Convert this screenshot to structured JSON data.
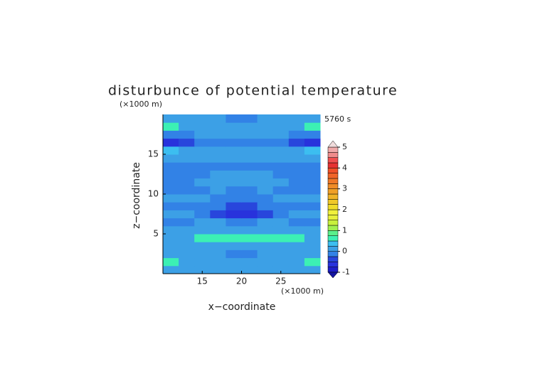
{
  "chart_data": {
    "type": "contour",
    "title": "disturbunce of potential temperature",
    "subtitle": "5760 s",
    "x_label": "x−coordinate",
    "y_label": "z−coordinate",
    "x_unit": "(×1000 m)",
    "y_unit": "(×1000 m)",
    "x": [
      11,
      13,
      15,
      17,
      19,
      21,
      23,
      25,
      27,
      29
    ],
    "y": [
      0.5,
      1.5,
      2.5,
      3.5,
      4.5,
      5.5,
      6.5,
      7.5,
      8.5,
      9.5,
      10.5,
      11.5,
      12.5,
      13.5,
      14.5,
      15.5,
      16.5,
      17.5,
      18.5,
      19.5
    ],
    "z": [
      [
        0,
        0,
        0,
        0,
        0,
        0,
        0,
        0,
        0,
        0
      ],
      [
        0.6,
        0.1,
        0.1,
        0.1,
        0.1,
        0.1,
        0.1,
        0.1,
        0.1,
        0.6
      ],
      [
        0.1,
        0.1,
        0.1,
        0.1,
        -0.1,
        -0.1,
        0.1,
        0.1,
        0.1,
        0.1
      ],
      [
        0.1,
        0.1,
        0.1,
        0.1,
        0.1,
        0.1,
        0.1,
        0.1,
        0.1,
        0.1
      ],
      [
        0.1,
        0.1,
        0.6,
        0.6,
        0.6,
        0.6,
        0.6,
        0.6,
        0.6,
        0.1
      ],
      [
        0.1,
        0.1,
        0.1,
        0.1,
        0.1,
        0.1,
        0.1,
        0.1,
        0.1,
        0.1
      ],
      [
        -0.1,
        -0.1,
        0.1,
        0.1,
        -0.1,
        -0.1,
        0.1,
        0.1,
        -0.1,
        -0.1
      ],
      [
        0.1,
        0.1,
        -0.1,
        -0.4,
        -0.6,
        -0.6,
        -0.4,
        -0.1,
        0.1,
        0.1
      ],
      [
        -0.1,
        -0.1,
        -0.1,
        -0.1,
        -0.4,
        -0.4,
        -0.1,
        -0.1,
        -0.1,
        -0.1
      ],
      [
        0.1,
        0.1,
        0.1,
        -0.1,
        -0.1,
        -0.1,
        -0.1,
        0.1,
        0.1,
        0.1
      ],
      [
        -0.1,
        -0.1,
        -0.1,
        0.1,
        -0.1,
        -0.1,
        0.1,
        -0.1,
        -0.1,
        -0.1
      ],
      [
        -0.1,
        -0.1,
        0.1,
        0.1,
        0.1,
        0.1,
        0.1,
        0.1,
        -0.1,
        -0.1
      ],
      [
        -0.1,
        -0.1,
        -0.1,
        0.1,
        0.1,
        0.1,
        0.1,
        -0.1,
        -0.1,
        -0.1
      ],
      [
        -0.1,
        -0.1,
        -0.1,
        -0.1,
        -0.1,
        -0.1,
        -0.1,
        -0.1,
        -0.1,
        -0.1
      ],
      [
        0.1,
        0.1,
        0.1,
        0.1,
        0.1,
        0.1,
        0.1,
        0.1,
        0.1,
        0.1
      ],
      [
        0.4,
        0.1,
        0.1,
        0.1,
        0.1,
        0.1,
        0.1,
        0.1,
        0.1,
        0.4
      ],
      [
        -0.6,
        -0.3,
        -0.1,
        -0.1,
        -0.1,
        -0.1,
        -0.1,
        -0.1,
        -0.3,
        -0.6
      ],
      [
        -0.1,
        -0.1,
        0.1,
        0.1,
        0.1,
        0.1,
        0.1,
        0.1,
        -0.1,
        -0.1
      ],
      [
        0.6,
        0.1,
        0.1,
        0.1,
        0.1,
        0.1,
        0.1,
        0.1,
        0.1,
        0.6
      ],
      [
        0.1,
        0.1,
        0.1,
        0.1,
        -0.1,
        -0.1,
        0.1,
        0.1,
        0.1,
        0.1
      ]
    ],
    "xlim": [
      10,
      30
    ],
    "ylim": [
      0,
      20
    ],
    "xticks": [
      15,
      20,
      25
    ],
    "yticks": [
      5,
      10,
      15
    ],
    "levels": [
      -1,
      -0.75,
      -0.5,
      -0.25,
      0,
      0.25,
      0.5,
      0.75,
      1,
      1.25,
      1.5,
      1.75,
      2,
      2.25,
      2.5,
      2.75,
      3,
      3.25,
      3.5,
      3.75,
      4,
      4.25,
      4.5,
      4.75,
      5
    ],
    "colors": [
      "#1e1ec8",
      "#2832dc",
      "#2846dc",
      "#3282e6",
      "#3ca0e6",
      "#3cbef0",
      "#3cf0b4",
      "#5af08c",
      "#a0f050",
      "#c8f03c",
      "#e6f03c",
      "#f0f03c",
      "#f0dc28",
      "#f0c828",
      "#f0b428",
      "#f0a028",
      "#f08c28",
      "#f07828",
      "#f06428",
      "#f05028",
      "#e63232",
      "#f05050",
      "#f08c8c",
      "#f0aaaa"
    ],
    "under_color": "#1414a0",
    "over_color": "#f0dcdc",
    "colorbar_ticks": [
      -1,
      0,
      1,
      2,
      3,
      4,
      5
    ]
  }
}
